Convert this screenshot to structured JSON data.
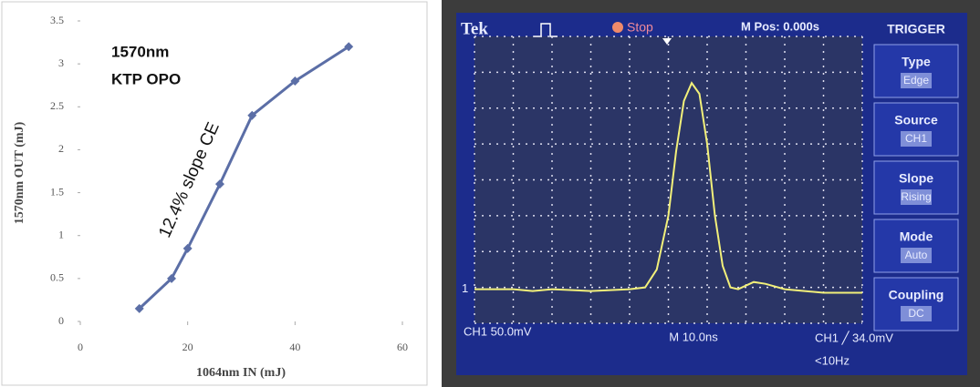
{
  "chart_data": [
    {
      "type": "line",
      "annotations": [
        "1570nm",
        "KTP OPO",
        "12.4% slope CE"
      ],
      "x_label": "1064nm IN (mJ)",
      "y_label": "1570nm OUT (mJ)",
      "x": [
        11,
        17,
        20,
        26,
        32,
        40,
        50
      ],
      "values": [
        0.15,
        0.5,
        0.85,
        1.6,
        2.4,
        2.8,
        3.2
      ],
      "color": "#5b6ea6",
      "xlim": [
        0,
        60
      ],
      "xticks": [
        0,
        20,
        40,
        60
      ],
      "ylim": [
        0,
        3.5
      ],
      "yticks": [
        0,
        0.5,
        1,
        1.5,
        2,
        2.5,
        3,
        3.5
      ]
    },
    {
      "type": "scope",
      "header": {
        "brand": "Tek",
        "status": "Stop",
        "position": "M Pos: 0.000s",
        "menu_title": "TRIGGER"
      },
      "menu": [
        {
          "label": "Type",
          "value": "Edge"
        },
        {
          "label": "Source",
          "value": "CH1"
        },
        {
          "label": "Slope",
          "value": "Rising"
        },
        {
          "label": "Mode",
          "value": "Auto"
        },
        {
          "label": "Coupling",
          "value": "DC"
        }
      ],
      "footer": {
        "channel": "CH1  50.0mV",
        "timebase": "M 10.0ns",
        "trigger": "CH1  ╱  34.0mV",
        "frequency": "<10Hz"
      },
      "channel_marker": "1",
      "color": "#f2f07a",
      "x": [
        0,
        1,
        1.5,
        2,
        3,
        4,
        4.4,
        4.7,
        5.0,
        5.2,
        5.4,
        5.6,
        5.8,
        6.0,
        6.2,
        6.4,
        6.6,
        6.8,
        7.2,
        7.5,
        8,
        9,
        10
      ],
      "values": [
        0.95,
        0.95,
        0.9,
        0.95,
        0.9,
        0.95,
        1.0,
        1.5,
        3.0,
        4.8,
        6.2,
        6.7,
        6.4,
        5.0,
        3.0,
        1.6,
        1.0,
        0.95,
        1.15,
        1.1,
        0.95,
        0.85,
        0.85
      ],
      "xlim": [
        0,
        10
      ],
      "xticks": [
        0,
        1,
        2,
        3,
        4,
        5,
        6,
        7,
        8,
        9,
        10
      ],
      "ylim": [
        0,
        8
      ],
      "yticks": [
        0,
        1,
        2,
        3,
        4,
        5,
        6,
        7,
        8
      ]
    }
  ]
}
